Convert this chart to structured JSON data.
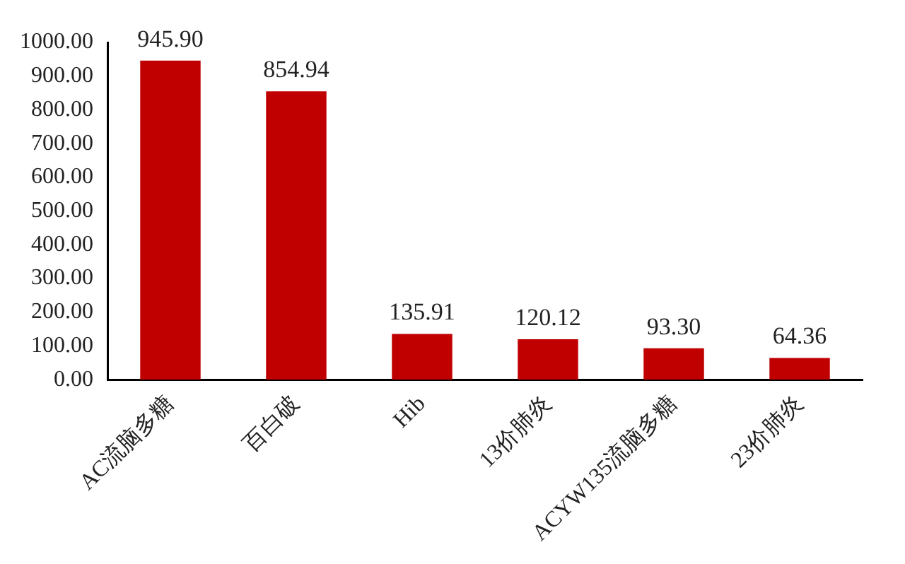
{
  "chart_data": {
    "type": "bar",
    "categories": [
      "AC流脑多糖",
      "百白破",
      "Hib",
      "13价肺炎",
      "ACYW135流脑多糖",
      "23价肺炎"
    ],
    "values": [
      945.9,
      854.94,
      135.91,
      120.12,
      93.3,
      64.36
    ],
    "value_labels": [
      "945.90",
      "854.94",
      "135.91",
      "120.12",
      "93.30",
      "64.36"
    ],
    "color": "#c00000",
    "ylim": [
      0,
      1000
    ],
    "yticks": [
      {
        "value": 0,
        "label": "0.00"
      },
      {
        "value": 100,
        "label": "100.00"
      },
      {
        "value": 200,
        "label": "200.00"
      },
      {
        "value": 300,
        "label": "300.00"
      },
      {
        "value": 400,
        "label": "400.00"
      },
      {
        "value": 500,
        "label": "500.00"
      },
      {
        "value": 600,
        "label": "600.00"
      },
      {
        "value": 700,
        "label": "700.00"
      },
      {
        "value": 800,
        "label": "800.00"
      },
      {
        "value": 900,
        "label": "900.00"
      },
      {
        "value": 1000,
        "label": "1000.00"
      }
    ],
    "grid": false,
    "legend": false
  }
}
